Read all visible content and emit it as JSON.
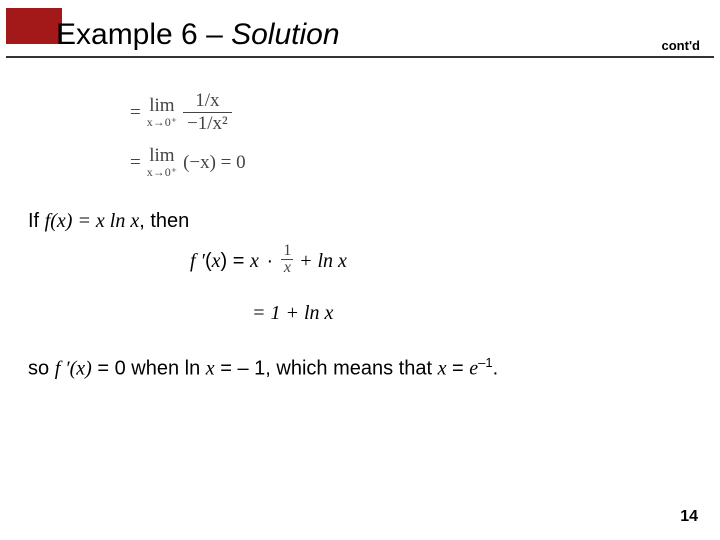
{
  "title": {
    "prefix": "Example 6 – ",
    "italic": "Solution"
  },
  "contd": "cont'd",
  "eq1": {
    "eq_sign": "=",
    "lim": "lim",
    "lim_sub": "x→0⁺",
    "frac_num": "1/x",
    "frac_den": "−1/x²"
  },
  "eq2": {
    "eq_sign": "=",
    "lim": "lim",
    "lim_sub": "x→0⁺",
    "expr": "(−x) = 0"
  },
  "body": {
    "if_line_1": "If ",
    "fx": "f",
    "paren_x": "(x)",
    "eq_x_ln": " = x ln x",
    "then": ", then"
  },
  "deriv": {
    "f_prime": "f ′",
    "open": "(",
    "x_var": "x",
    "close": ")",
    "eq": " = ",
    "x_times": "x ",
    "dot": "·",
    "frac_n": "1",
    "frac_d": "x",
    "plus_ln": " + ln x"
  },
  "deriv2": {
    "line": "= 1 + ln x"
  },
  "concl": {
    "so": "so ",
    "f_prime": "f ′",
    "px": "(x)",
    "eq0": " = 0 when ln ",
    "x": "x",
    "eqm1": " = – 1, which means that ",
    "x2": "x",
    "eq_e": " = ",
    "e": "e",
    "sup": "–1",
    "dot": "."
  },
  "page": "14",
  "colors": {
    "red": "#a31919",
    "text": "#000000",
    "eq_gray": "#444444"
  }
}
